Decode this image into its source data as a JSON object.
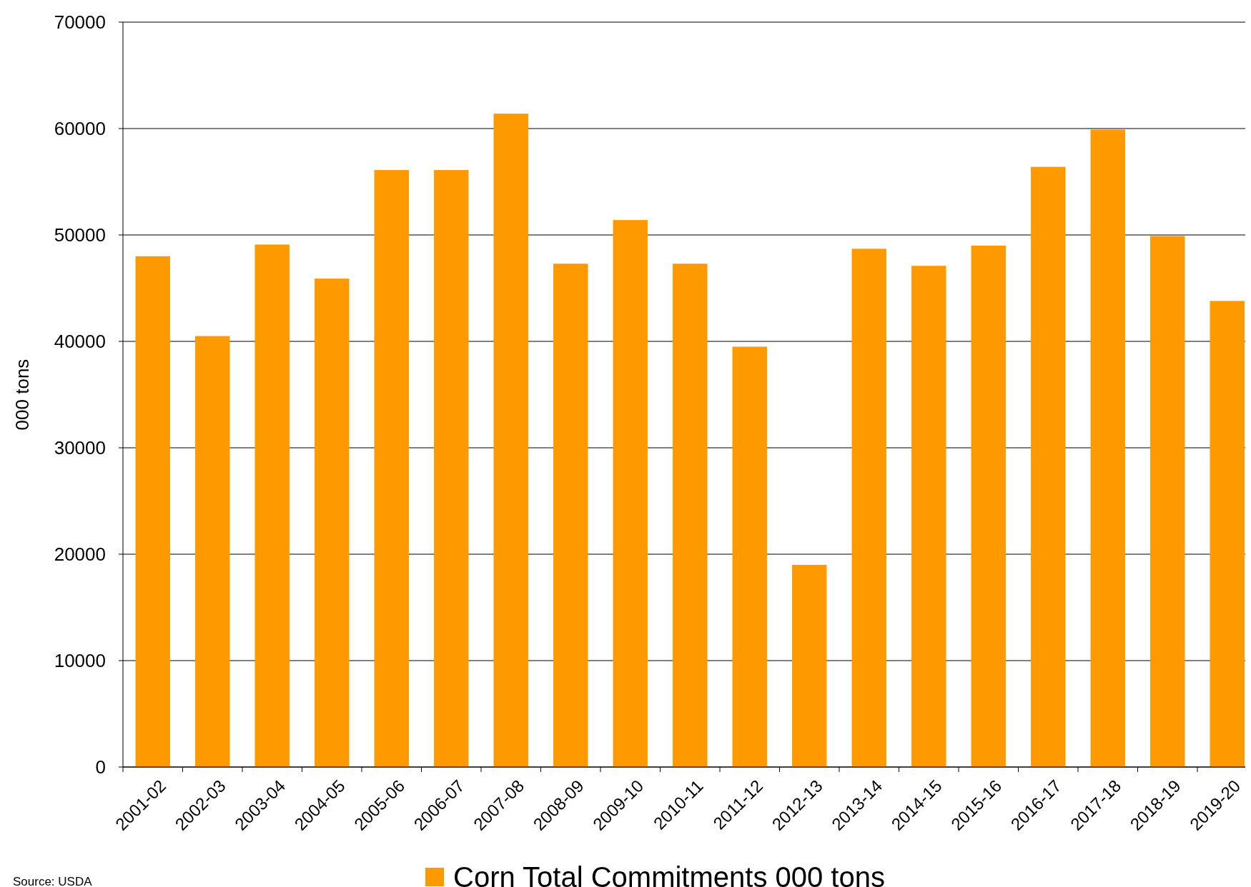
{
  "chart_data": {
    "type": "bar",
    "ylabel": "000 tons",
    "categories": [
      "2001-02",
      "2002-03",
      "2003-04",
      "2004-05",
      "2005-06",
      "2006-07",
      "2007-08",
      "2008-09",
      "2009-10",
      "2010-11",
      "2011-12",
      "2012-13",
      "2013-14",
      "2014-15",
      "2015-16",
      "2016-17",
      "2017-18",
      "2018-19",
      "2019-20"
    ],
    "series": [
      {
        "name": "Corn Total Commitments 000 tons",
        "color": "#ff9900",
        "values": [
          48000,
          40500,
          49100,
          45900,
          56100,
          56100,
          61400,
          47300,
          51400,
          47300,
          39500,
          19000,
          48700,
          47100,
          49000,
          56400,
          59900,
          49900,
          43800
        ]
      }
    ],
    "ylim": [
      0,
      70000
    ],
    "yticks": [
      0,
      10000,
      20000,
      30000,
      40000,
      50000,
      60000,
      70000
    ],
    "grid": "y",
    "legend": "bottom",
    "annotations": [
      "Source: USDA"
    ]
  }
}
